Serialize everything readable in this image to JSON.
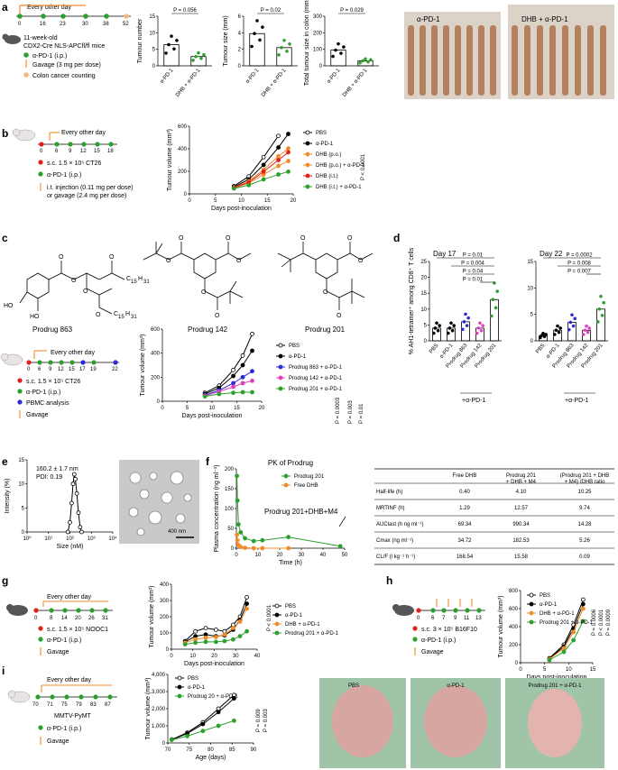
{
  "panels": {
    "a": {
      "label": "a",
      "schedule_title": "Every other day",
      "timeline_days": [
        "0",
        "16",
        "23",
        "30",
        "38",
        "52"
      ],
      "mouse_text": [
        "11-week-old",
        "CDX2-Cre NLS-APCfl/fl mice"
      ],
      "legend": [
        "α-PD-1 (i.p.)",
        "Gavage (3 mg per dose)",
        "Colon cancer counting"
      ],
      "photo_labels": [
        "α-PD-1",
        "DHB + α-PD-1"
      ]
    },
    "b": {
      "label": "b",
      "schedule_title": "Every other day",
      "timeline_days": [
        "0",
        "6",
        "9",
        "12",
        "15",
        "18"
      ],
      "legend": [
        "s.c. 1.5 × 10⁵ CT26",
        "α-PD-1 (i.p.)",
        "i.t. injection (0.11 mg per dose)",
        "or gavage (2.4 mg per dose)"
      ],
      "pvalue": "P < 0.0001"
    },
    "c": {
      "label": "c",
      "prodrugs": [
        "Prodrug 863",
        "Prodrug 142",
        "Prodrug 201"
      ],
      "schedule_title": "Every other day",
      "timeline_days": [
        "0",
        "6",
        "9",
        "12",
        "15",
        "17",
        "19",
        "22"
      ],
      "legend": [
        "s.c. 1.5 × 10⁵ CT26",
        "α-PD-1 (i.p.)",
        "PBMC analysis",
        "Gavage"
      ],
      "pvalues": [
        "P = 0.0003",
        "P = 0.003",
        "P = 0.01"
      ]
    },
    "d": {
      "label": "d",
      "group_label": "+α-PD-1"
    },
    "e": {
      "label": "e",
      "size_text": "160.2 ± 1.7 nm",
      "pdi_text": "PDI: 0.19",
      "scale_bar": "400 nm"
    },
    "f": {
      "label": "f",
      "annotation": "Prodrug 201+DHB+M4",
      "table": {
        "headers": [
          "",
          "Free DHB",
          "Prodrug 201 + DHB + M4",
          "(Prodrug 201 + DHB + M4) /DHB ratio"
        ],
        "rows": [
          [
            "Half-life (h)",
            "0.40",
            "4.10",
            "10.25"
          ],
          [
            "MRTINF (h)",
            "1.29",
            "12.57",
            "9.74"
          ],
          [
            "AUClast (h ng ml⁻¹)",
            "69.34",
            "990.34",
            "14.28"
          ],
          [
            "Cmax (ng ml⁻¹)",
            "34.72",
            "182.53",
            "5.26"
          ],
          [
            "CL/F (l kg⁻¹ h⁻¹)",
            "168.54",
            "15.58",
            "0.09"
          ]
        ]
      }
    },
    "g": {
      "label": "g",
      "schedule_title": "Every other day",
      "timeline_days": [
        "0",
        "8",
        "14",
        "20",
        "26",
        "31"
      ],
      "legend": [
        "s.c. 1.5 × 10⁵ NOOC1",
        "α-PD-1 (i.p.)",
        "Gavage"
      ],
      "pvalue": "P < 0.0001"
    },
    "h": {
      "label": "h",
      "timeline_days": [
        "0",
        "6",
        "7",
        "9",
        "11",
        "13"
      ],
      "legend": [
        "s.c. 3 × 10⁵ B16F10",
        "α-PD-1 (i.p.)",
        "Gavage"
      ],
      "pvalues": [
        "P = 0.0006",
        "P < 0.0001",
        "P = 0.0009"
      ]
    },
    "i": {
      "label": "i",
      "schedule_title": "Every other day",
      "timeline_days": [
        "70",
        "71",
        "75",
        "79",
        "83",
        "87"
      ],
      "mouse_text": "MMTV-PyMT",
      "legend": [
        "α-PD-1 (i.p.)",
        "Gavage"
      ],
      "pvalues": [
        "P = 0.009",
        "P = 0.003"
      ],
      "photo_labels": [
        "PBS",
        "α-PD-1",
        "Prodrug 201 + α-PD-1"
      ]
    }
  },
  "colors": {
    "black": "#000000",
    "green": "#2ca02c",
    "orange": "#f28c28",
    "blue": "#2a2ad6",
    "magenta": "#e040c0",
    "lightorange": "#f5b97a",
    "red": "#e0201b",
    "tumour_photo": "#b5805e"
  },
  "chart_data": [
    {
      "id": "a1",
      "type": "bar",
      "ylabel": "Tumour number",
      "categories": [
        "α-PD-1",
        "DHB + α-PD-1"
      ],
      "values": [
        6.4,
        2.8
      ],
      "ylim": [
        0,
        15
      ],
      "yticks": [
        "0",
        "5",
        "10",
        "15"
      ],
      "pvalue": "P = 0.056"
    },
    {
      "id": "a2",
      "type": "bar",
      "ylabel": "Tumour size (mm)",
      "categories": [
        "α-PD-1",
        "DHB + α-PD-1"
      ],
      "values": [
        3.9,
        2.2
      ],
      "ylim": [
        0,
        6
      ],
      "yticks": [
        "0",
        "2",
        "4",
        "6"
      ],
      "pvalue": "P = 0.02"
    },
    {
      "id": "a3",
      "type": "bar",
      "ylabel": "Total tumour size in colon (mm²)",
      "categories": [
        "α-PD-1",
        "DHB + α-PD-1"
      ],
      "values": [
        95,
        30
      ],
      "ylim": [
        0,
        300
      ],
      "yticks": [
        "0",
        "100",
        "200",
        "300"
      ],
      "pvalue": "P = 0.029"
    },
    {
      "id": "b",
      "type": "line",
      "xlabel": "Days post-inoculation",
      "ylabel": "Tumour volume (mm³)",
      "xlim": [
        0,
        21
      ],
      "ylim": [
        0,
        700
      ],
      "xticks": [
        "0",
        "5",
        "10",
        "15",
        "20"
      ],
      "yticks": [
        "0",
        "200",
        "400",
        "600"
      ],
      "series": [
        {
          "name": "PBS",
          "x": [
            9,
            12,
            15,
            18
          ],
          "y": [
            80,
            180,
            380,
            600
          ]
        },
        {
          "name": "α-PD-1",
          "x": [
            9,
            12,
            15,
            18,
            20
          ],
          "y": [
            70,
            150,
            300,
            480,
            620
          ]
        },
        {
          "name": "DHB (p.o.)",
          "x": [
            9,
            12,
            15,
            18,
            20
          ],
          "y": [
            65,
            130,
            250,
            390,
            470
          ]
        },
        {
          "name": "DHB (p.o.) + α-PD-1",
          "x": [
            9,
            12,
            15,
            18,
            20
          ],
          "y": [
            60,
            110,
            200,
            290,
            340
          ]
        },
        {
          "name": "DHB (i.t.)",
          "x": [
            9,
            12,
            15,
            18,
            20
          ],
          "y": [
            62,
            120,
            230,
            350,
            430
          ]
        },
        {
          "name": "DHB (i.t.) + α-PD-1",
          "x": [
            9,
            12,
            15,
            18,
            20
          ],
          "y": [
            55,
            90,
            150,
            200,
            230
          ]
        }
      ]
    },
    {
      "id": "c",
      "type": "line",
      "xlabel": "Days post-inoculation",
      "ylabel": "Tumour volume (mm³)",
      "xlim": [
        0,
        21
      ],
      "ylim": [
        0,
        600
      ],
      "xticks": [
        "0",
        "5",
        "10",
        "15",
        "20"
      ],
      "yticks": [
        "0",
        "200",
        "400",
        "600"
      ],
      "series": [
        {
          "name": "PBS",
          "x": [
            9,
            12,
            15,
            17,
            19
          ],
          "y": [
            70,
            130,
            260,
            380,
            560
          ]
        },
        {
          "name": "α-PD-1",
          "x": [
            9,
            12,
            15,
            17,
            19
          ],
          "y": [
            60,
            110,
            210,
            300,
            420
          ]
        },
        {
          "name": "Prodrug 863 + α-PD-1",
          "x": [
            9,
            12,
            15,
            17,
            19
          ],
          "y": [
            50,
            90,
            150,
            200,
            250
          ]
        },
        {
          "name": "Prodrug 142 + α-PD-1",
          "x": [
            9,
            12,
            15,
            17,
            19
          ],
          "y": [
            45,
            80,
            120,
            150,
            170
          ]
        },
        {
          "name": "Prodrug 201 + α-PD-1",
          "x": [
            9,
            12,
            15,
            17,
            19
          ],
          "y": [
            40,
            60,
            70,
            75,
            75
          ]
        }
      ]
    },
    {
      "id": "d1",
      "type": "bar",
      "title": "Day 17",
      "ylabel": "% AH1-tetramer⁺ among CD8⁺ T cells",
      "categories": [
        "PBS",
        "α-PD-1",
        "Prodrug 863",
        "Prodrug 142",
        "Prodrug 201"
      ],
      "values": [
        4,
        4,
        6,
        4,
        13
      ],
      "ylim": [
        0,
        25
      ],
      "yticks": [
        "0",
        "5",
        "10",
        "15",
        "20",
        "25"
      ],
      "pvalues": [
        "P = 0.01",
        "P = 0.004",
        "P = 0.04",
        "P = 0.01"
      ]
    },
    {
      "id": "d2",
      "type": "bar",
      "title": "Day 22",
      "categories": [
        "PBS",
        "α-PD-1",
        "Prodrug 863",
        "Prodrug 142",
        "Prodrug 201"
      ],
      "values": [
        1,
        2,
        3.5,
        2,
        6
      ],
      "ylim": [
        0,
        15
      ],
      "yticks": [
        "0",
        "5",
        "10",
        "15"
      ],
      "pvalues": [
        "P = 0.0002",
        "P = 0.008",
        "P = 0.007"
      ]
    },
    {
      "id": "e",
      "type": "line",
      "xlabel": "Size (nM)",
      "ylabel": "Intensity (%)",
      "xscale": "log",
      "xlim": [
        1,
        10000
      ],
      "ylim": [
        0,
        15
      ],
      "xticks": [
        "10⁰",
        "10¹",
        "10²",
        "10³",
        "10⁴"
      ],
      "yticks": [
        "0",
        "5",
        "10",
        "15"
      ],
      "series": [
        {
          "x": [
            80,
            100,
            120,
            140,
            160,
            180,
            210,
            250,
            300,
            350
          ],
          "y": [
            0,
            2,
            6,
            10,
            12,
            11,
            8,
            4,
            1,
            0
          ]
        }
      ]
    },
    {
      "id": "f",
      "type": "line",
      "title": "PK of Prodrug",
      "xlabel": "Time (h)",
      "ylabel": "Plasma concentration (ng ml⁻¹)",
      "xlim": [
        0,
        50
      ],
      "ylim": [
        0,
        200
      ],
      "xticks": [
        "0",
        "10",
        "20",
        "30",
        "40",
        "50"
      ],
      "yticks": [
        "0",
        "50",
        "100",
        "150",
        "200"
      ],
      "series": [
        {
          "name": "Prodrug 201",
          "x": [
            0.25,
            0.5,
            1,
            2,
            4,
            8,
            12,
            24,
            48
          ],
          "y": [
            182,
            120,
            60,
            40,
            25,
            18,
            20,
            28,
            5
          ]
        },
        {
          "name": "Free DHB",
          "x": [
            0.25,
            0.5,
            1,
            2,
            4,
            8,
            12,
            24
          ],
          "y": [
            34,
            20,
            8,
            3,
            1,
            0,
            0,
            0
          ]
        }
      ]
    },
    {
      "id": "g",
      "type": "line",
      "xlabel": "Days post-inoculation",
      "ylabel": "Tumour volume (mm³)",
      "xlim": [
        0,
        50
      ],
      "ylim": [
        0,
        400
      ],
      "xticks": [
        "0",
        "10",
        "20",
        "30",
        "40"
      ],
      "yticks": [
        "0",
        "100",
        "200",
        "300",
        "400"
      ],
      "series": [
        {
          "name": "PBS",
          "x": [
            8,
            14,
            20,
            26,
            31,
            36,
            40,
            44
          ],
          "y": [
            50,
            110,
            130,
            120,
            110,
            150,
            200,
            320
          ]
        },
        {
          "name": "α-PD-1",
          "x": [
            8,
            14,
            20,
            26,
            31,
            36,
            40,
            44
          ],
          "y": [
            45,
            80,
            90,
            80,
            85,
            120,
            180,
            280
          ]
        },
        {
          "name": "DHB + α-PD-1",
          "x": [
            8,
            14,
            20,
            26,
            31,
            36,
            40,
            44
          ],
          "y": [
            40,
            60,
            70,
            75,
            90,
            130,
            170,
            250
          ]
        },
        {
          "name": "Prodrug 201 + α-PD-1",
          "x": [
            8,
            14,
            20,
            26,
            31,
            36,
            40,
            44
          ],
          "y": [
            30,
            40,
            45,
            45,
            50,
            60,
            80,
            110
          ]
        }
      ]
    },
    {
      "id": "h",
      "type": "line",
      "xlabel": "Days post-inoculation",
      "ylabel": "Tumour volume (mm³)",
      "xlim": [
        0,
        15
      ],
      "ylim": [
        0,
        800
      ],
      "xticks": [
        "0",
        "5",
        "10",
        "15"
      ],
      "yticks": [
        "0",
        "200",
        "400",
        "600",
        "800"
      ],
      "series": [
        {
          "name": "PBS",
          "x": [
            6,
            9,
            11,
            13
          ],
          "y": [
            50,
            200,
            420,
            700
          ]
        },
        {
          "name": "α-PD-1",
          "x": [
            6,
            9,
            11,
            13
          ],
          "y": [
            45,
            180,
            380,
            650
          ]
        },
        {
          "name": "DHB + α-PD-1",
          "x": [
            6,
            9,
            11,
            13
          ],
          "y": [
            40,
            160,
            340,
            600
          ]
        },
        {
          "name": "Prodrug 201 + α-PD-1",
          "x": [
            6,
            9,
            11,
            13
          ],
          "y": [
            30,
            120,
            250,
            460
          ]
        }
      ]
    },
    {
      "id": "i",
      "type": "line",
      "xlabel": "Age (days)",
      "ylabel": "Tumour volume (mm³)",
      "xlim": [
        70,
        92
      ],
      "ylim": [
        0,
        4000
      ],
      "xticks": [
        "70",
        "75",
        "80",
        "85",
        "90"
      ],
      "yticks": [
        "0",
        "1,000",
        "2,000",
        "3,000",
        "4,000"
      ],
      "series": [
        {
          "name": "PBS",
          "x": [
            71,
            75,
            79,
            83,
            87
          ],
          "y": [
            200,
            600,
            1200,
            2000,
            2800
          ]
        },
        {
          "name": "α-PD-1",
          "x": [
            71,
            75,
            79,
            83,
            87
          ],
          "y": [
            190,
            550,
            1100,
            1800,
            2600
          ]
        },
        {
          "name": "Prodrug 20 + α-PD-1",
          "x": [
            71,
            75,
            79,
            83,
            87
          ],
          "y": [
            180,
            400,
            700,
            1000,
            1300
          ]
        }
      ]
    }
  ]
}
